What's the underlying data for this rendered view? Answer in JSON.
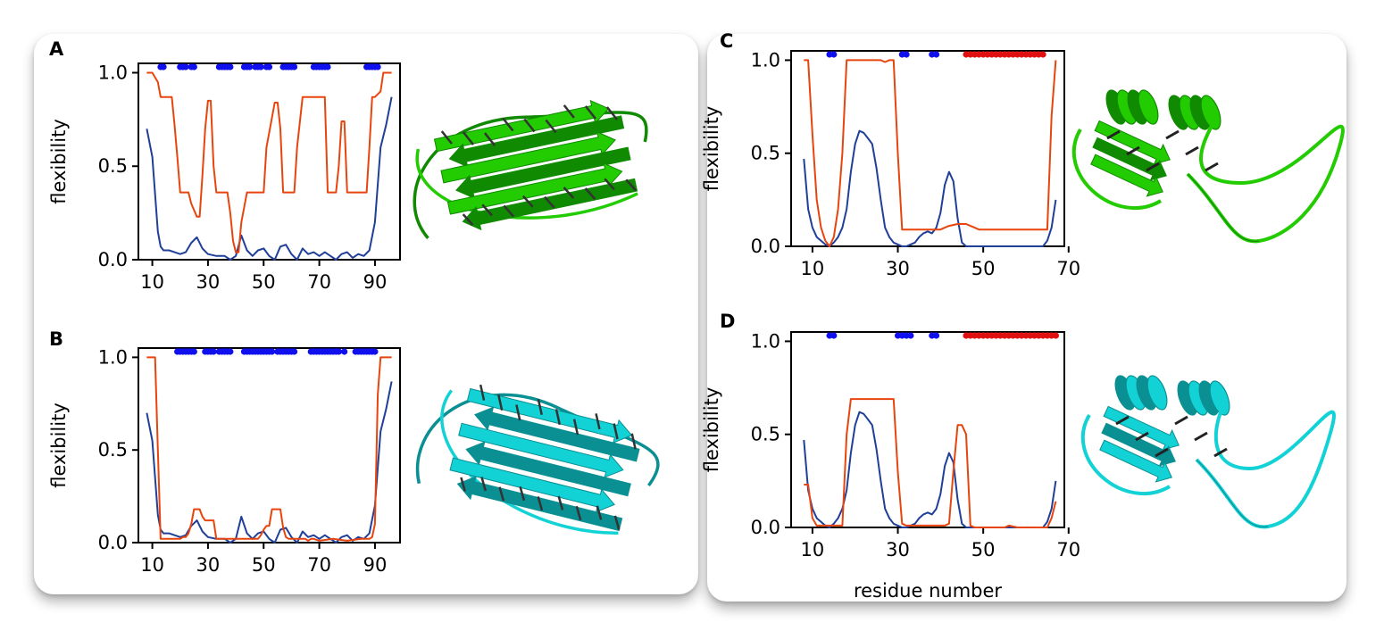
{
  "colors": {
    "blue": "#1f3f99",
    "orange": "#e8450e",
    "dots_blue": "#1010ee",
    "dots_red": "#e01010",
    "green": "#22cc00",
    "cyan": "#13d2d6"
  },
  "chart_data": [
    {
      "panel": "A",
      "type": "line",
      "xlabel": "",
      "ylabel": "flexibility",
      "xlim": [
        5,
        99
      ],
      "ylim": [
        0,
        1.05
      ],
      "xticks": [
        10,
        30,
        50,
        70,
        90
      ],
      "yticks": [
        0.0,
        0.5,
        1.0
      ],
      "xtick_labels": [
        "10",
        "30",
        "50",
        "70",
        "90"
      ],
      "ytick_labels": [
        "0.0",
        "0.5",
        "1.0"
      ],
      "series": [
        {
          "color": "blue",
          "x": [
            8,
            10,
            11,
            12,
            13,
            14,
            16,
            18,
            20,
            22,
            24,
            26,
            28,
            30,
            33,
            36,
            38,
            40,
            42,
            44,
            46,
            48,
            50,
            52,
            54,
            56,
            58,
            60,
            62,
            64,
            66,
            68,
            70,
            72,
            74,
            76,
            78,
            80,
            82,
            84,
            86,
            88,
            90,
            92,
            94,
            96
          ],
          "y": [
            0.7,
            0.55,
            0.35,
            0.15,
            0.07,
            0.05,
            0.05,
            0.04,
            0.03,
            0.04,
            0.09,
            0.12,
            0.06,
            0.03,
            0.02,
            0.02,
            0.0,
            0.02,
            0.13,
            0.05,
            0.02,
            0.05,
            0.06,
            0.02,
            0.0,
            0.07,
            0.08,
            0.03,
            0.0,
            0.06,
            0.03,
            0.04,
            0.02,
            0.04,
            0.02,
            0.0,
            0.03,
            0.04,
            0.01,
            0.03,
            0.02,
            0.05,
            0.2,
            0.6,
            0.72,
            0.87
          ]
        },
        {
          "color": "orange",
          "x": [
            8,
            10,
            12,
            13,
            17,
            18,
            19,
            20,
            23,
            24,
            26,
            27,
            28,
            29,
            30,
            31,
            32,
            33,
            37,
            38,
            39,
            40,
            41,
            42,
            44,
            45,
            50,
            51,
            54,
            55,
            56,
            57,
            61,
            62,
            64,
            65,
            67,
            68,
            72,
            73,
            75,
            76,
            77,
            78,
            79,
            80,
            83,
            84,
            85,
            86,
            87,
            88,
            89,
            90,
            92,
            93,
            96
          ],
          "y": [
            1.0,
            1.0,
            0.95,
            0.87,
            0.87,
            0.72,
            0.55,
            0.36,
            0.36,
            0.3,
            0.23,
            0.23,
            0.45,
            0.7,
            0.85,
            0.85,
            0.5,
            0.36,
            0.36,
            0.25,
            0.1,
            0.04,
            0.04,
            0.2,
            0.36,
            0.36,
            0.36,
            0.6,
            0.84,
            0.84,
            0.7,
            0.36,
            0.36,
            0.6,
            0.87,
            0.87,
            0.87,
            0.87,
            0.87,
            0.36,
            0.36,
            0.36,
            0.5,
            0.74,
            0.74,
            0.36,
            0.36,
            0.36,
            0.36,
            0.36,
            0.36,
            0.6,
            0.87,
            0.87,
            0.9,
            1.0,
            1.0
          ]
        }
      ],
      "markers": {
        "blue": [
          13,
          14,
          20,
          21,
          22,
          24,
          25,
          34,
          35,
          36,
          37,
          38,
          43,
          44,
          45,
          47,
          48,
          49,
          51,
          52,
          57,
          58,
          59,
          60,
          61,
          68,
          69,
          70,
          71,
          72,
          73,
          87,
          88,
          89,
          90,
          91
        ],
        "red": []
      }
    },
    {
      "panel": "B",
      "type": "line",
      "xlabel": "",
      "ylabel": "flexibility",
      "xlim": [
        5,
        99
      ],
      "ylim": [
        0,
        1.05
      ],
      "xticks": [
        10,
        30,
        50,
        70,
        90
      ],
      "yticks": [
        0.0,
        0.5,
        1.0
      ],
      "xtick_labels": [
        "10",
        "30",
        "50",
        "70",
        "90"
      ],
      "ytick_labels": [
        "0.0",
        "0.5",
        "1.0"
      ],
      "series": [
        {
          "color": "blue",
          "x": [
            8,
            10,
            11,
            12,
            13,
            14,
            16,
            18,
            20,
            22,
            24,
            26,
            28,
            30,
            33,
            36,
            38,
            40,
            42,
            44,
            46,
            48,
            50,
            52,
            54,
            56,
            58,
            60,
            62,
            64,
            66,
            68,
            70,
            72,
            74,
            76,
            78,
            80,
            82,
            84,
            86,
            88,
            90,
            92,
            94,
            96
          ],
          "y": [
            0.7,
            0.55,
            0.35,
            0.15,
            0.07,
            0.05,
            0.05,
            0.04,
            0.03,
            0.04,
            0.09,
            0.12,
            0.06,
            0.03,
            0.02,
            0.02,
            0.0,
            0.02,
            0.14,
            0.05,
            0.02,
            0.05,
            0.06,
            0.02,
            0.0,
            0.07,
            0.08,
            0.03,
            0.0,
            0.06,
            0.03,
            0.04,
            0.02,
            0.04,
            0.02,
            0.0,
            0.03,
            0.04,
            0.01,
            0.03,
            0.02,
            0.05,
            0.2,
            0.6,
            0.72,
            0.87
          ]
        },
        {
          "color": "orange",
          "x": [
            8,
            11,
            12,
            13,
            14,
            15,
            20,
            21,
            22,
            23,
            24,
            25,
            26,
            27,
            28,
            29,
            30,
            32,
            33,
            37,
            38,
            39,
            40,
            45,
            46,
            47,
            48,
            49,
            50,
            51,
            52,
            53,
            54,
            55,
            56,
            57,
            58,
            59,
            60,
            61,
            65,
            66,
            67,
            68,
            70,
            75,
            80,
            85,
            88,
            89,
            90,
            91,
            92,
            96
          ],
          "y": [
            1.0,
            1.0,
            0.5,
            0.02,
            0.02,
            0.02,
            0.02,
            0.03,
            0.03,
            0.05,
            0.1,
            0.18,
            0.18,
            0.18,
            0.14,
            0.12,
            0.12,
            0.12,
            0.02,
            0.02,
            0.02,
            0.02,
            0.02,
            0.02,
            0.02,
            0.02,
            0.02,
            0.04,
            0.07,
            0.09,
            0.09,
            0.18,
            0.18,
            0.18,
            0.18,
            0.08,
            0.03,
            0.02,
            0.02,
            0.02,
            0.02,
            0.01,
            0.02,
            0.02,
            0.01,
            0.02,
            0.01,
            0.02,
            0.02,
            0.03,
            0.1,
            0.8,
            1.0,
            1.0
          ]
        }
      ],
      "markers": {
        "blue": [
          19,
          20,
          21,
          22,
          23,
          24,
          25,
          29,
          30,
          31,
          32,
          34,
          35,
          36,
          37,
          38,
          43,
          44,
          45,
          46,
          47,
          48,
          49,
          50,
          51,
          52,
          53,
          55,
          56,
          57,
          58,
          59,
          60,
          61,
          67,
          68,
          69,
          70,
          71,
          72,
          73,
          74,
          75,
          76,
          77,
          79,
          83,
          84,
          85,
          86,
          87,
          88,
          89,
          90
        ],
        "red": []
      }
    },
    {
      "panel": "C",
      "type": "line",
      "xlabel": "",
      "ylabel": "flexibility",
      "xlim": [
        5,
        69
      ],
      "ylim": [
        0,
        1.05
      ],
      "xticks": [
        10,
        30,
        50,
        70
      ],
      "yticks": [
        0.0,
        0.5,
        1.0
      ],
      "xtick_labels": [
        "10",
        "30",
        "50",
        "70"
      ],
      "ytick_labels": [
        "0.0",
        "0.5",
        "1.0"
      ],
      "series": [
        {
          "color": "blue",
          "x": [
            8,
            9,
            10,
            11,
            12,
            13,
            14,
            15,
            16,
            17,
            18,
            19,
            20,
            21,
            22,
            23,
            24,
            25,
            26,
            27,
            28,
            29,
            30,
            31,
            32,
            33,
            34,
            35,
            36,
            37,
            38,
            39,
            40,
            41,
            42,
            43,
            44,
            45,
            46,
            50,
            55,
            60,
            64,
            65,
            66,
            67
          ],
          "y": [
            0.47,
            0.2,
            0.1,
            0.05,
            0.03,
            0.01,
            0.0,
            0.02,
            0.05,
            0.1,
            0.2,
            0.4,
            0.55,
            0.62,
            0.61,
            0.58,
            0.55,
            0.42,
            0.25,
            0.1,
            0.05,
            0.02,
            0.01,
            0.0,
            0.0,
            0.01,
            0.02,
            0.05,
            0.07,
            0.08,
            0.07,
            0.1,
            0.18,
            0.33,
            0.4,
            0.35,
            0.15,
            0.02,
            0.0,
            0.0,
            0.0,
            0.0,
            0.0,
            0.03,
            0.1,
            0.25
          ]
        },
        {
          "color": "orange",
          "x": [
            8,
            9,
            10,
            11,
            12,
            13,
            14,
            15,
            16,
            17,
            18,
            19,
            20,
            25,
            26,
            27,
            28,
            29,
            30,
            31,
            32,
            40,
            41,
            42,
            44,
            45,
            46,
            47,
            48,
            49,
            50,
            55,
            60,
            65,
            66,
            67
          ],
          "y": [
            1.0,
            1.0,
            0.6,
            0.25,
            0.1,
            0.03,
            0.0,
            0.05,
            0.2,
            0.5,
            1.0,
            1.0,
            1.0,
            1.0,
            1.0,
            0.99,
            1.0,
            1.0,
            0.5,
            0.09,
            0.09,
            0.09,
            0.1,
            0.11,
            0.12,
            0.12,
            0.12,
            0.11,
            0.1,
            0.09,
            0.09,
            0.09,
            0.09,
            0.09,
            0.7,
            1.0
          ]
        }
      ],
      "markers": {
        "blue": [
          14,
          15,
          31,
          32,
          38,
          39
        ],
        "red": [
          46,
          47,
          48,
          49,
          50,
          51,
          52,
          53,
          54,
          55,
          56,
          57,
          58,
          59,
          60,
          61,
          62,
          63,
          64
        ]
      }
    },
    {
      "panel": "D",
      "type": "line",
      "xlabel": "residue number",
      "ylabel": "flexibility",
      "xlim": [
        5,
        69
      ],
      "ylim": [
        0,
        1.05
      ],
      "xticks": [
        10,
        30,
        50,
        70
      ],
      "yticks": [
        0.0,
        0.5,
        1.0
      ],
      "xtick_labels": [
        "10",
        "30",
        "50",
        "70"
      ],
      "ytick_labels": [
        "0.0",
        "0.5",
        "1.0"
      ],
      "series": [
        {
          "color": "blue",
          "x": [
            8,
            9,
            10,
            11,
            12,
            13,
            14,
            15,
            16,
            17,
            18,
            19,
            20,
            21,
            22,
            23,
            24,
            25,
            26,
            27,
            28,
            29,
            30,
            31,
            32,
            33,
            34,
            35,
            36,
            37,
            38,
            39,
            40,
            41,
            42,
            43,
            44,
            45,
            46,
            50,
            55,
            60,
            64,
            65,
            66,
            67
          ],
          "y": [
            0.47,
            0.2,
            0.1,
            0.05,
            0.03,
            0.01,
            0.0,
            0.02,
            0.05,
            0.1,
            0.2,
            0.4,
            0.55,
            0.62,
            0.61,
            0.58,
            0.55,
            0.42,
            0.25,
            0.1,
            0.05,
            0.02,
            0.01,
            0.0,
            0.0,
            0.01,
            0.02,
            0.05,
            0.07,
            0.08,
            0.07,
            0.1,
            0.18,
            0.33,
            0.4,
            0.35,
            0.15,
            0.02,
            0.0,
            0.0,
            0.0,
            0.0,
            0.0,
            0.03,
            0.1,
            0.25
          ]
        },
        {
          "color": "orange",
          "x": [
            8,
            9,
            10,
            11,
            12,
            13,
            14,
            15,
            16,
            17,
            18,
            19,
            20,
            28,
            29,
            30,
            31,
            32,
            40,
            41,
            42,
            43,
            44,
            45,
            46,
            47,
            48,
            50,
            52,
            54,
            55,
            56,
            58,
            60,
            62,
            64,
            65,
            66,
            67
          ],
          "y": [
            0.23,
            0.23,
            0.05,
            0.01,
            0.01,
            0.01,
            0.01,
            0.01,
            0.01,
            0.01,
            0.5,
            0.69,
            0.69,
            0.69,
            0.69,
            0.3,
            0.02,
            0.01,
            0.01,
            0.01,
            0.02,
            0.3,
            0.55,
            0.55,
            0.5,
            0.01,
            0.0,
            0.0,
            0.0,
            0.0,
            0.0,
            0.01,
            0.0,
            0.0,
            0.0,
            0.0,
            0.0,
            0.05,
            0.14
          ]
        }
      ],
      "markers": {
        "blue": [
          14,
          15,
          30,
          31,
          32,
          33,
          38,
          39
        ],
        "red": [
          46,
          47,
          48,
          49,
          50,
          51,
          52,
          53,
          54,
          55,
          56,
          57,
          58,
          59,
          60,
          61,
          62,
          63,
          64,
          65,
          66,
          67
        ]
      }
    }
  ]
}
